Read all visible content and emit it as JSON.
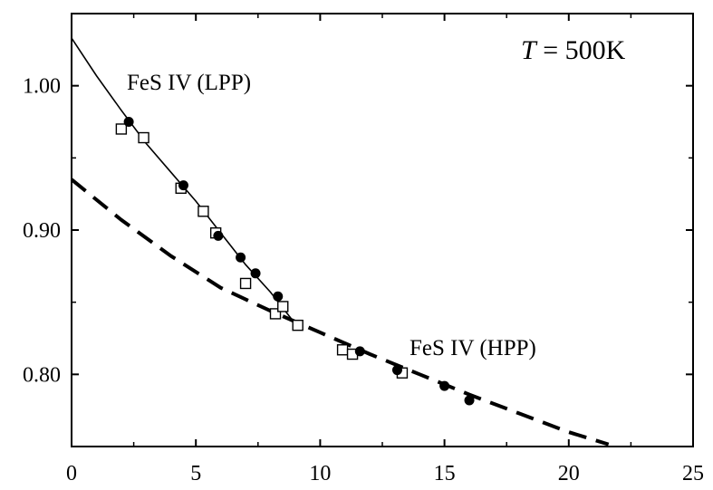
{
  "chart_data": {
    "type": "scatter",
    "title": "",
    "xlabel": "",
    "ylabel": "",
    "xlim": [
      0,
      25
    ],
    "ylim": [
      0.75,
      1.05
    ],
    "grid": false,
    "x_ticks": [
      0,
      5,
      10,
      15,
      20,
      25
    ],
    "x_tick_labels": [
      "0",
      "5",
      "10",
      "15",
      "20",
      "25"
    ],
    "y_ticks": [
      0.8,
      0.9,
      1.0
    ],
    "y_tick_labels": [
      "0.80",
      "0.90",
      "1.00"
    ],
    "annotations": {
      "temperature_symbol": "T",
      "temperature_value": " = 500K",
      "lpp": "FeS IV (LPP)",
      "hpp": "FeS IV (HPP)"
    },
    "series": [
      {
        "marker": "filled-circle",
        "points": [
          [
            2.3,
            0.975
          ],
          [
            4.5,
            0.931
          ],
          [
            5.9,
            0.896
          ],
          [
            6.8,
            0.881
          ],
          [
            7.4,
            0.87
          ],
          [
            8.3,
            0.854
          ],
          [
            11.6,
            0.816
          ],
          [
            13.1,
            0.803
          ],
          [
            15.0,
            0.792
          ],
          [
            16.0,
            0.782
          ]
        ]
      },
      {
        "marker": "open-square",
        "points": [
          [
            2.0,
            0.97
          ],
          [
            2.9,
            0.964
          ],
          [
            4.4,
            0.929
          ],
          [
            5.3,
            0.913
          ],
          [
            5.8,
            0.898
          ],
          [
            7.0,
            0.863
          ],
          [
            8.2,
            0.842
          ],
          [
            8.5,
            0.847
          ],
          [
            9.1,
            0.834
          ],
          [
            10.9,
            0.817
          ],
          [
            11.3,
            0.814
          ],
          [
            13.3,
            0.801
          ]
        ]
      },
      {
        "line_style": "solid",
        "fit": "LPP",
        "points": [
          [
            0,
            1.033
          ],
          [
            1,
            1.007
          ],
          [
            2,
            0.983
          ],
          [
            3,
            0.96
          ],
          [
            4,
            0.94
          ],
          [
            5,
            0.92
          ],
          [
            6,
            0.898
          ],
          [
            7,
            0.876
          ],
          [
            8,
            0.857
          ],
          [
            9,
            0.835
          ]
        ]
      },
      {
        "line_style": "dashed",
        "fit": "HPP",
        "points": [
          [
            0,
            0.935
          ],
          [
            2,
            0.907
          ],
          [
            4,
            0.882
          ],
          [
            6,
            0.86
          ],
          [
            8,
            0.844
          ],
          [
            10,
            0.829
          ],
          [
            12,
            0.814
          ],
          [
            14,
            0.8
          ],
          [
            16,
            0.786
          ],
          [
            18,
            0.773
          ],
          [
            20,
            0.76
          ],
          [
            21.6,
            0.7515
          ]
        ]
      }
    ]
  }
}
